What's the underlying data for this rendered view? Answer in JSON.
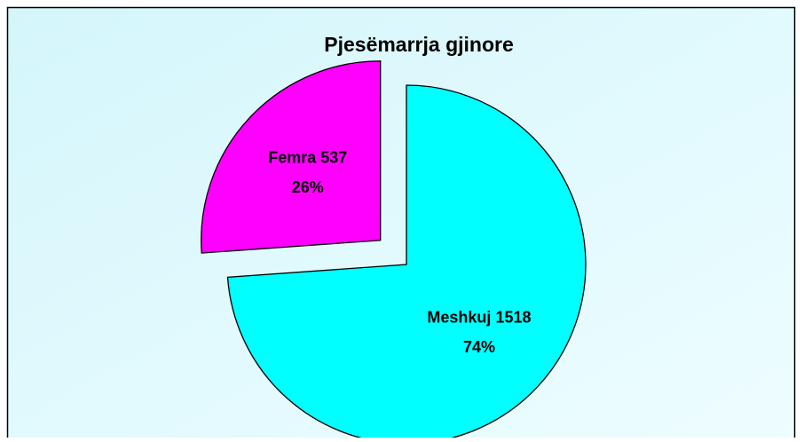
{
  "chart_data": {
    "type": "pie",
    "title": "Pjesëmarrja gjinore",
    "categories": [
      "Meshkuj",
      "Femra"
    ],
    "values": [
      1518,
      537
    ],
    "percent_labels": [
      "74%",
      "26%"
    ],
    "colors": [
      "#00ffff",
      "#ff00ff"
    ],
    "explode": [
      false,
      true
    ]
  }
}
